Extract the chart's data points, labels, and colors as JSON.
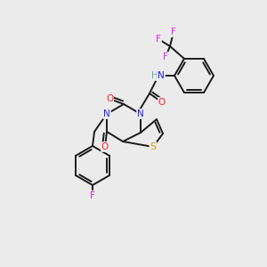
{
  "background_color": "#ebebeb",
  "bond_color": "#1a1a1a",
  "atom_colors": {
    "N": "#2020ff",
    "O": "#ff2020",
    "S": "#c8a800",
    "F": "#e020e0",
    "H": "#6aadad",
    "C": "#1a1a1a"
  },
  "figsize": [
    3.0,
    3.0
  ],
  "dpi": 100
}
